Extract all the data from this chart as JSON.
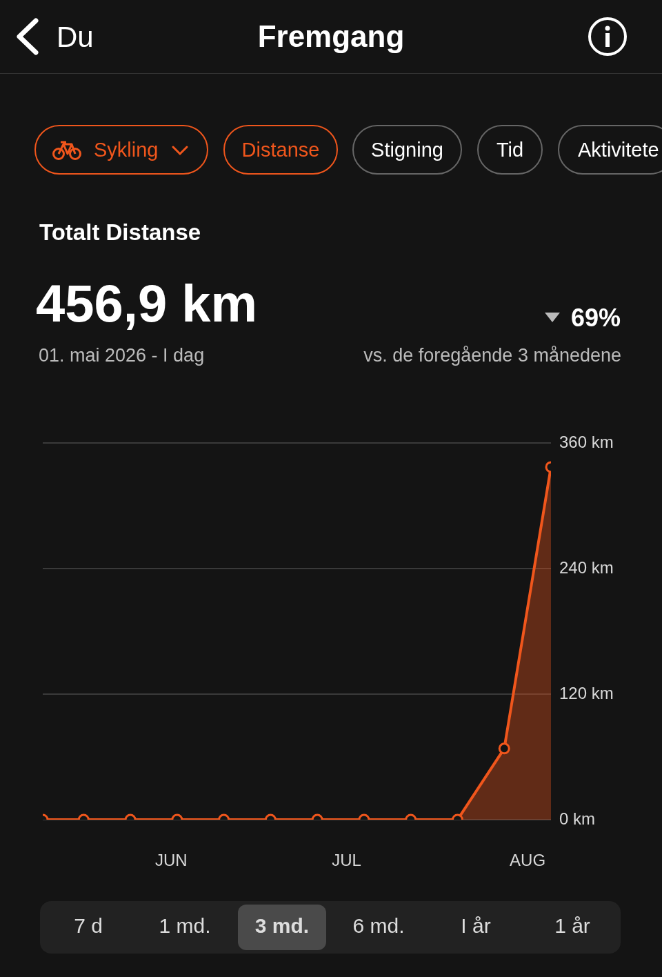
{
  "chart_data": {
    "type": "area",
    "title": "Totalt Distanse",
    "subtitle": "456,9 km",
    "annotations": [
      "Du",
      "Fremgang",
      "Sykling",
      "Distanse",
      "Stigning",
      "Tid",
      "Aktivitete",
      "01. mai 2026 - I dag",
      "69%",
      "vs. de foregående 3 månedene",
      "7 d",
      "1 md.",
      "3 md.",
      "6 md.",
      "I år",
      "1 år"
    ],
    "x": [
      "2026-05-10",
      "2026-05-17",
      "2026-05-25",
      "2026-06-02",
      "2026-06-10",
      "2026-06-18",
      "2026-06-26",
      "2026-07-04",
      "2026-07-12",
      "2026-07-20",
      "2026-07-28",
      "2026-08-05"
    ],
    "series": [
      {
        "color": "#f0561c",
        "values": [
          0,
          0,
          0,
          0,
          0,
          0,
          0,
          0,
          0,
          0,
          68,
          337
        ]
      }
    ],
    "xlim": [
      "2026-05-10",
      "2026-08-05"
    ],
    "xticks": [
      {
        "value": "2026-06-01",
        "label": "JUN"
      },
      {
        "value": "2026-07-01",
        "label": "JUL"
      },
      {
        "value": "2026-08-01",
        "label": "AUG"
      }
    ],
    "ylim": [
      0,
      360
    ],
    "yticks": [
      {
        "value": 0,
        "label": "0 km"
      },
      {
        "value": 120,
        "label": "120 km"
      },
      {
        "value": 240,
        "label": "240 km"
      },
      {
        "value": 360,
        "label": "360 km"
      }
    ],
    "grid": "y",
    "marker": "circle",
    "legend": false
  }
}
